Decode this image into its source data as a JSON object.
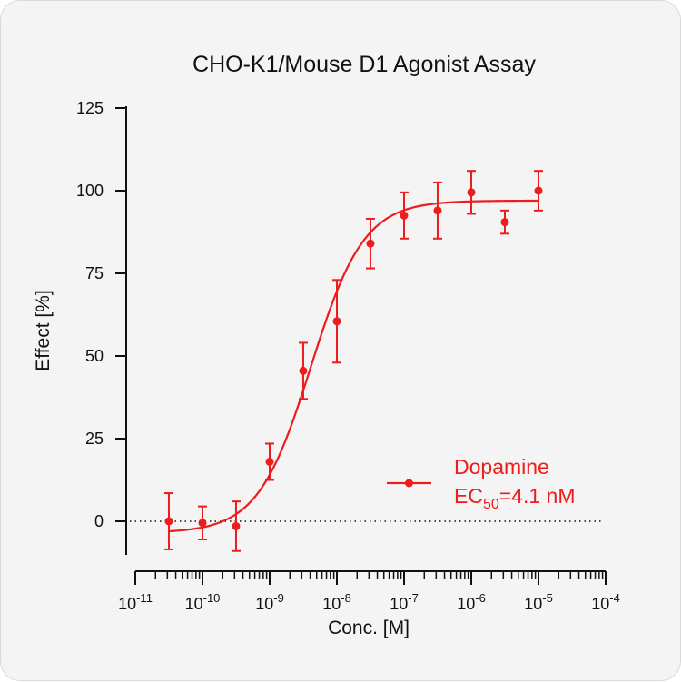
{
  "chart_data": {
    "type": "scatter",
    "title": "CHO-K1/Mouse D1 Agonist Assay",
    "xlabel": "Conc. [M]",
    "ylabel": "Effect  [%]",
    "xscale": "log10",
    "xlim": [
      1e-11,
      0.0001
    ],
    "ylim": [
      -10,
      125
    ],
    "yticks": [
      0,
      25,
      50,
      75,
      100,
      125
    ],
    "xtick_exponents": [
      -11,
      -10,
      -9,
      -8,
      -7,
      -6,
      -5,
      -4
    ],
    "xtick_base": "10",
    "zero_reference_line": "dotted",
    "grid": false,
    "legend_position": "bottom-right",
    "colors": {
      "series": "#ee1c1c",
      "axis": "#111111",
      "background": "#f4f4f4"
    },
    "series": [
      {
        "name": "Dopamine",
        "annotation_prefix": "EC",
        "annotation_subscript": "50",
        "annotation_value": "=4.1 nM",
        "points": [
          {
            "x": 3.16e-11,
            "y": 0,
            "err": 8.5
          },
          {
            "x": 1e-10,
            "y": -0.5,
            "err": 5
          },
          {
            "x": 3.16e-10,
            "y": -1.5,
            "err": 7.5
          },
          {
            "x": 1e-09,
            "y": 18,
            "err": 5.5
          },
          {
            "x": 3.16e-09,
            "y": 45.5,
            "err": 8.5
          },
          {
            "x": 1e-08,
            "y": 60.5,
            "err": 12.5
          },
          {
            "x": 3.16e-08,
            "y": 84,
            "err": 7.5
          },
          {
            "x": 1e-07,
            "y": 92.5,
            "err": 7
          },
          {
            "x": 3.16e-07,
            "y": 94,
            "err": 8.5
          },
          {
            "x": 1e-06,
            "y": 99.5,
            "err": 6.5
          },
          {
            "x": 3.16e-06,
            "y": 90.5,
            "err": 3.5
          },
          {
            "x": 1e-05,
            "y": 100,
            "err": 6
          }
        ],
        "fit": {
          "model": "4PL",
          "bottom": -3.5,
          "top": 97,
          "ec50": 4.1e-09,
          "hill": 1.1
        }
      }
    ]
  }
}
